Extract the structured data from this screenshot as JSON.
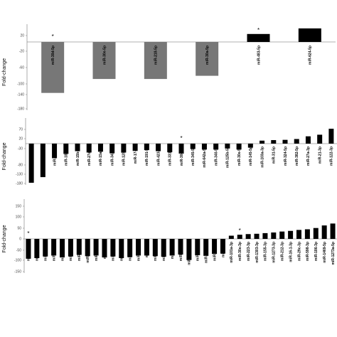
{
  "chart_data": [
    {
      "type": "bar",
      "title": "",
      "xlabel": "",
      "ylabel": "Fold-change",
      "ylim": [
        -160,
        40
      ],
      "yticks": [
        "20",
        "-20",
        "-60",
        "-100",
        "-140",
        "-180"
      ],
      "bar_color": "#777777",
      "categories": [
        "miR-30d-5p",
        "miR-30e-5p",
        "miR-218-5p",
        "miR-30a-5p",
        "miR-483-5p",
        "miR-624-5p"
      ],
      "values": [
        -128,
        -93,
        -93,
        -85,
        20,
        34
      ],
      "colors": [
        "#777777",
        "#777777",
        "#777777",
        "#777777",
        "#000000",
        "#000000"
      ],
      "significant": [
        true,
        false,
        false,
        false,
        true,
        false
      ]
    },
    {
      "type": "bar",
      "title": "",
      "xlabel": "",
      "ylabel": "Fold-change",
      "ylim": [
        -160,
        70
      ],
      "yticks": [
        "70",
        "20",
        "-30",
        "-80",
        "-130",
        "-180"
      ],
      "categories": [
        "miR-106b-5p",
        "miR-155-5p",
        "miR-664-5p",
        "miR-186-5p",
        "miR-15b-5p",
        "miR-27a-5p",
        "miR-15a-5p",
        "miR-342-5p",
        "miR-125-5p",
        "miR-17-5p",
        "miR-191-5p",
        "miR-423-5p",
        "miR-331-3p",
        "miR-30d-5p",
        "miR-345-5p",
        "miR-642a-5p",
        "miR-340-5p",
        "miR-125b-5p",
        "miR-30e-5p",
        "miR-145-5p",
        "miR-103a-3p",
        "miR-31-5p",
        "miR-324-5p",
        "miR-382-5p",
        "miR-27a-3p",
        "miR-21-3p",
        "miR-122-3p"
      ],
      "values": [
        -145,
        -124,
        -54,
        -38,
        -28,
        -33,
        -30,
        -36,
        -33,
        -27,
        -24,
        -28,
        -32,
        -37,
        -20,
        -22,
        -22,
        -18,
        -22,
        -15,
        11,
        13,
        14,
        17,
        27,
        33,
        55
      ],
      "significant": [
        false,
        false,
        false,
        false,
        false,
        false,
        false,
        false,
        false,
        false,
        false,
        false,
        false,
        true,
        false,
        false,
        false,
        false,
        false,
        false,
        false,
        false,
        false,
        false,
        false,
        false,
        false
      ]
    },
    {
      "type": "bar",
      "title": "",
      "xlabel": "",
      "ylabel": "Fold-change",
      "ylim": [
        -120,
        150
      ],
      "yticks": [
        "150",
        "100",
        "50",
        "0",
        "-50",
        "-100",
        "-150"
      ],
      "categories": [
        "miR-92a-3p",
        "miR-100-5p",
        "miR-144-3p",
        "miR-19b-3p",
        "miR-132-3p",
        "miR-140-3p",
        "miR-212-3p",
        "miR-378a-3p",
        "miR-375-3p",
        "miR-96-5p",
        "miR-30c-5p",
        "miR-197-3p",
        "miR-664-3p",
        "miR-92b-3p",
        "miR-320a",
        "miR-363-3p",
        "miR-454-3p",
        "miR-32-3p",
        "miR-29b-3p",
        "miR-1255b-5p",
        "miR-26b-5p",
        "miR-301b-5p",
        "miR-29a-3p",
        "miR-1180",
        "miR-101a-3p",
        "miR-30e-3p",
        "miR-223-3p",
        "miR-1303-3p",
        "miR-155-3p",
        "miR-1273-3p",
        "miR-212-3p",
        "miR-16-1-3p",
        "miR-29c-3p",
        "miR-598-3p",
        "miR-186-3p",
        "miR-1469-5p",
        "miR-1273a-5p"
      ],
      "values": [
        -62,
        -60,
        -55,
        -52,
        -58,
        -55,
        -50,
        -54,
        -52,
        -58,
        -55,
        -60,
        -57,
        -52,
        -52,
        -54,
        -56,
        -52,
        -49,
        -66,
        -51,
        -53,
        -47,
        -46,
        10,
        13,
        15,
        16,
        18,
        20,
        23,
        25,
        28,
        30,
        34,
        42,
        48
      ],
      "significant": [
        true,
        false,
        false,
        false,
        false,
        false,
        false,
        false,
        false,
        false,
        false,
        false,
        false,
        false,
        false,
        false,
        false,
        false,
        false,
        false,
        false,
        false,
        false,
        false,
        false,
        true,
        false,
        false,
        false,
        false,
        false,
        false,
        false,
        false,
        false,
        false,
        false
      ]
    }
  ]
}
